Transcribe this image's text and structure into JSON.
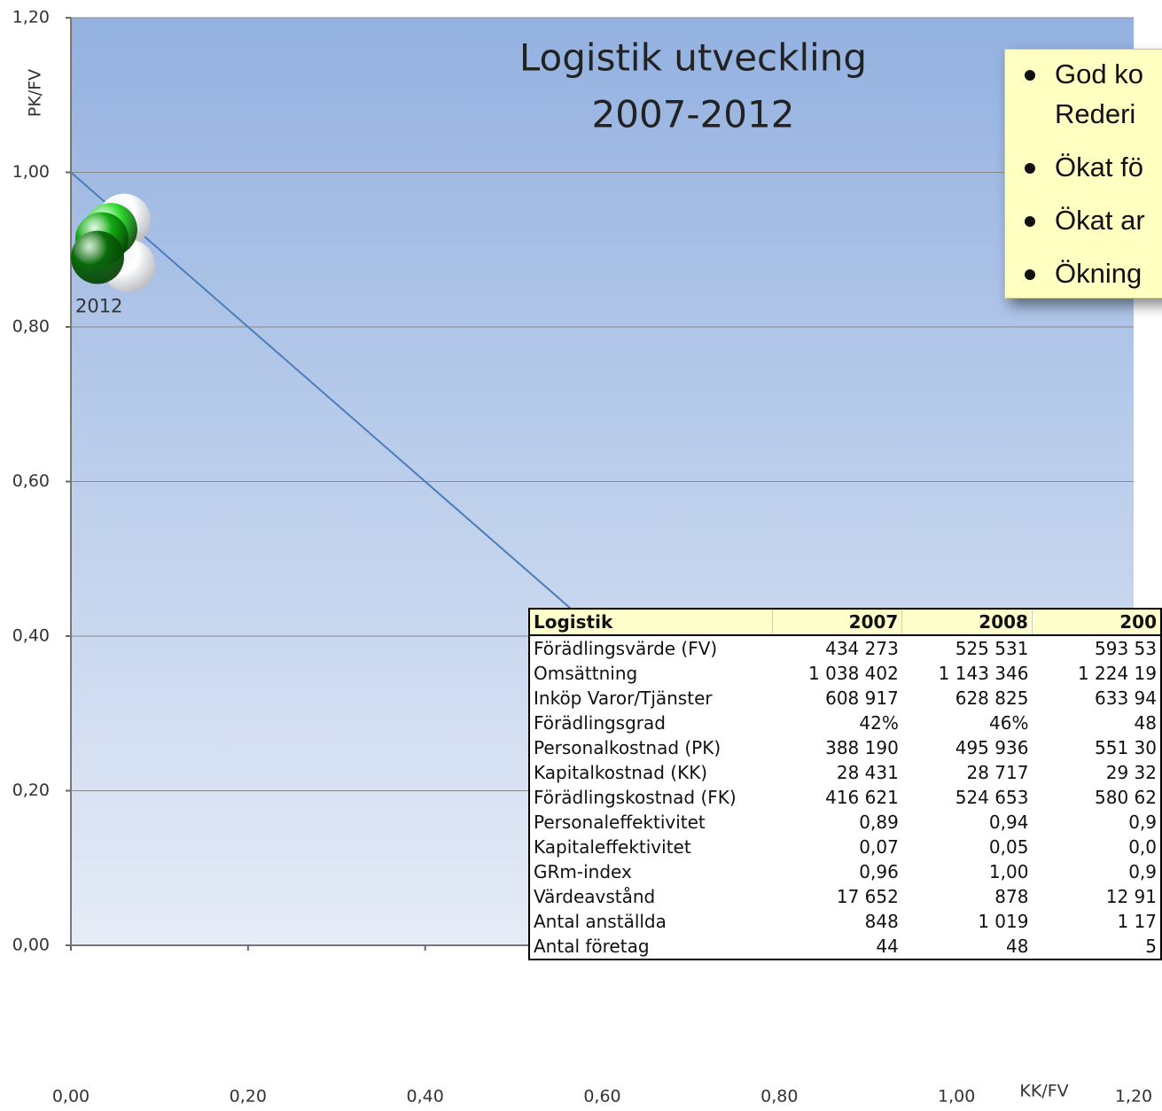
{
  "chart_data": {
    "type": "scatter",
    "title": [
      "Logistik utveckling",
      "2007-2012"
    ],
    "x_label": "KK/FV",
    "y_label": "PK/FV",
    "xlim": [
      0,
      1.2
    ],
    "ylim": [
      0,
      1.2
    ],
    "xticks": [
      {
        "value": 0,
        "label": "0,00"
      },
      {
        "value": 0.2,
        "label": "0,20"
      },
      {
        "value": 0.4,
        "label": "0,40"
      },
      {
        "value": 0.6,
        "label": "0,60"
      },
      {
        "value": 0.8,
        "label": "0,80"
      },
      {
        "value": 1,
        "label": "1,00"
      },
      {
        "value": 1.2,
        "label": "1,20"
      }
    ],
    "yticks": [
      {
        "value": 0,
        "label": "0,00"
      },
      {
        "value": 0.2,
        "label": "0,20"
      },
      {
        "value": 0.4,
        "label": "0,40"
      },
      {
        "value": 0.6,
        "label": "0,60"
      },
      {
        "value": 0.8,
        "label": "0,80"
      },
      {
        "value": 1,
        "label": "1,00"
      },
      {
        "value": 1.2,
        "label": "1,20"
      }
    ],
    "grid": true,
    "reference_line": {
      "x": [
        0,
        1
      ],
      "y": [
        1,
        0
      ],
      "color": "#4a7ebb"
    },
    "points": [
      {
        "x": 0.06,
        "y": 0.938,
        "color": "#ffffff"
      },
      {
        "x": 0.065,
        "y": 0.879,
        "color": "#ffffff"
      },
      {
        "x": 0.045,
        "y": 0.926,
        "color": "#33dd33"
      },
      {
        "x": 0.035,
        "y": 0.914,
        "color": "#11aa11"
      },
      {
        "x": 0.03,
        "y": 0.89,
        "color": "#0a6a0a",
        "label": "2012"
      }
    ]
  },
  "table": {
    "header": [
      "Logistik",
      "2007",
      "2008",
      "200"
    ],
    "rows": [
      [
        "Förädlingsvärde (FV)",
        "434 273",
        "525 531",
        "593 53"
      ],
      [
        "Omsättning",
        "1 038 402",
        "1 143 346",
        "1 224 19"
      ],
      [
        "Inköp Varor/Tjänster",
        "608 917",
        "628 825",
        "633 94"
      ],
      [
        "Förädlingsgrad",
        "42%",
        "46%",
        "48"
      ],
      [
        "Personalkostnad (PK)",
        "388 190",
        "495 936",
        "551 30"
      ],
      [
        "Kapitalkostnad (KK)",
        "28 431",
        "28 717",
        "29 32"
      ],
      [
        "Förädlingskostnad (FK)",
        "416 621",
        "524 653",
        "580 62"
      ],
      [
        "Personaleffektivitet",
        "0,89",
        "0,94",
        "0,9"
      ],
      [
        "Kapitaleffektivitet",
        "0,07",
        "0,05",
        "0,0"
      ],
      [
        "GRm-index",
        "0,96",
        "1,00",
        "0,9"
      ],
      [
        "Värdeavstånd",
        "17 652",
        "878",
        "12 91"
      ],
      [
        "Antal anställda",
        "848",
        "1 019",
        "1 17"
      ],
      [
        "Antal företag",
        "44",
        "48",
        "5"
      ]
    ]
  },
  "text_box": {
    "lines": [
      "God ko",
      "Rederi",
      "Ökat fö",
      "Ökat ar",
      "Ökning"
    ]
  }
}
